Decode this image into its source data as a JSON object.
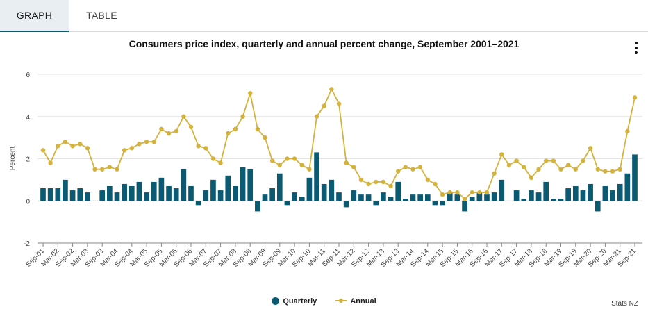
{
  "tabs": [
    {
      "label": "GRAPH",
      "active": true
    },
    {
      "label": "TABLE",
      "active": false
    }
  ],
  "menu_icon": "more-vertical-icon",
  "source": "Stats NZ",
  "colors": {
    "quarterly": "#0b5a72",
    "annual": "#d4b23c",
    "grid": "#e3e3e3",
    "axis": "#888888"
  },
  "chart_data": {
    "type": "bar+line",
    "title": "Consumers price index, quarterly and annual percent change, September 2001–2021",
    "ylabel": "Percent",
    "xlabel": "",
    "ylim": [
      -2,
      6
    ],
    "yticks": [
      -2,
      0,
      2,
      4,
      6
    ],
    "grid": true,
    "legend_position": "bottom",
    "categories": [
      "Sep-01",
      "Dec-01",
      "Mar-02",
      "Jun-02",
      "Sep-02",
      "Dec-02",
      "Mar-03",
      "Jun-03",
      "Sep-03",
      "Dec-03",
      "Mar-04",
      "Jun-04",
      "Sep-04",
      "Dec-04",
      "Mar-05",
      "Jun-05",
      "Sep-05",
      "Dec-05",
      "Mar-06",
      "Jun-06",
      "Sep-06",
      "Dec-06",
      "Mar-07",
      "Jun-07",
      "Sep-07",
      "Dec-07",
      "Mar-08",
      "Jun-08",
      "Sep-08",
      "Dec-08",
      "Mar-09",
      "Jun-09",
      "Sep-09",
      "Dec-09",
      "Mar-10",
      "Jun-10",
      "Sep-10",
      "Dec-10",
      "Mar-11",
      "Jun-11",
      "Sep-11",
      "Dec-11",
      "Mar-12",
      "Jun-12",
      "Sep-12",
      "Dec-12",
      "Mar-13",
      "Jun-13",
      "Sep-13",
      "Dec-13",
      "Mar-14",
      "Jun-14",
      "Sep-14",
      "Dec-14",
      "Mar-15",
      "Jun-15",
      "Sep-15",
      "Dec-15",
      "Mar-16",
      "Jun-16",
      "Sep-16",
      "Dec-16",
      "Mar-17",
      "Jun-17",
      "Sep-17",
      "Dec-17",
      "Mar-18",
      "Jun-18",
      "Sep-18",
      "Dec-18",
      "Mar-19",
      "Jun-19",
      "Sep-19",
      "Dec-19",
      "Mar-20",
      "Jun-20",
      "Sep-20",
      "Dec-20",
      "Mar-21",
      "Jun-21",
      "Sep-21"
    ],
    "tick_labels": [
      "Sep-01",
      "Mar-02",
      "Sep-02",
      "Mar-03",
      "Sep-03",
      "Mar-04",
      "Sep-04",
      "Mar-05",
      "Sep-05",
      "Mar-06",
      "Sep-06",
      "Mar-07",
      "Sep-07",
      "Mar-08",
      "Sep-08",
      "Mar-09",
      "Sep-09",
      "Mar-10",
      "Sep-10",
      "Mar-11",
      "Sep-11",
      "Mar-12",
      "Sep-12",
      "Mar-13",
      "Sep-13",
      "Mar-14",
      "Sep-14",
      "Mar-15",
      "Sep-15",
      "Mar-16",
      "Sep-16",
      "Mar-17",
      "Sep-17",
      "Mar-18",
      "Sep-18",
      "Mar-19",
      "Sep-19",
      "Mar-20",
      "Sep-20",
      "Mar-21",
      "Sep-21"
    ],
    "series": [
      {
        "name": "Quarterly",
        "type": "bar",
        "values": [
          0.6,
          0.6,
          0.6,
          1.0,
          0.5,
          0.6,
          0.4,
          0.0,
          0.5,
          0.7,
          0.4,
          0.8,
          0.7,
          0.9,
          0.4,
          0.9,
          1.1,
          0.7,
          0.6,
          1.5,
          0.7,
          -0.2,
          0.5,
          1.0,
          0.5,
          1.2,
          0.7,
          1.6,
          1.5,
          -0.5,
          0.3,
          0.6,
          1.3,
          -0.2,
          0.4,
          0.2,
          1.1,
          2.3,
          0.8,
          1.0,
          0.4,
          -0.3,
          0.5,
          0.3,
          0.3,
          -0.2,
          0.4,
          0.2,
          0.9,
          0.1,
          0.3,
          0.3,
          0.3,
          -0.2,
          -0.2,
          0.4,
          0.3,
          -0.5,
          0.2,
          0.4,
          0.3,
          0.4,
          1.0,
          0.0,
          0.5,
          0.1,
          0.5,
          0.4,
          0.9,
          0.1,
          0.1,
          0.6,
          0.7,
          0.5,
          0.8,
          -0.5,
          0.7,
          0.5,
          0.8,
          1.3,
          2.2
        ]
      },
      {
        "name": "Annual",
        "type": "line",
        "values": [
          2.4,
          1.8,
          2.6,
          2.8,
          2.6,
          2.7,
          2.5,
          1.5,
          1.5,
          1.6,
          1.5,
          2.4,
          2.5,
          2.7,
          2.8,
          2.8,
          3.4,
          3.2,
          3.3,
          4.0,
          3.5,
          2.6,
          2.5,
          2.0,
          1.8,
          3.2,
          3.4,
          4.0,
          5.1,
          3.4,
          3.0,
          1.9,
          1.7,
          2.0,
          2.0,
          1.7,
          1.5,
          4.0,
          4.5,
          5.3,
          4.6,
          1.8,
          1.6,
          1.0,
          0.8,
          0.9,
          0.9,
          0.7,
          1.4,
          1.6,
          1.5,
          1.6,
          1.0,
          0.8,
          0.3,
          0.4,
          0.4,
          0.1,
          0.4,
          0.4,
          0.4,
          1.3,
          2.2,
          1.7,
          1.9,
          1.6,
          1.1,
          1.5,
          1.9,
          1.9,
          1.5,
          1.7,
          1.5,
          1.9,
          2.5,
          1.5,
          1.4,
          1.4,
          1.5,
          3.3,
          4.9
        ]
      }
    ]
  }
}
